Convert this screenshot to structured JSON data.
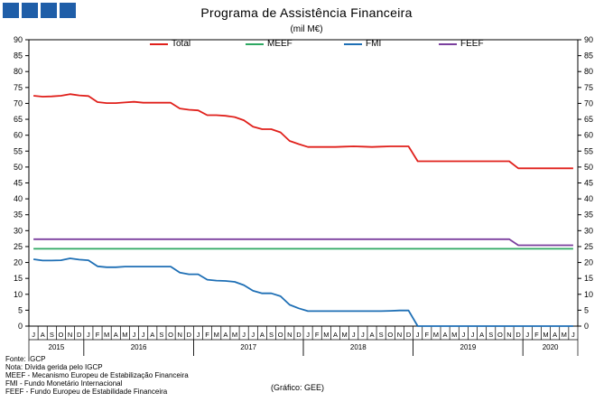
{
  "title": "Programa de Assistência Financeira",
  "subtitle": "(mil M€)",
  "notes": [
    "Fonte: IGCP",
    "Nota: Dívida gerida pelo IGCP",
    "MEEF - Mecanismo Europeu de Estabilização Financeira",
    "FMI - Fundo Monetário Internacional",
    "FEEF - Fundo Europeu de Estabilidade Financeira"
  ],
  "source": "(Gráfico: GEE)",
  "chart_data": {
    "type": "line",
    "title": "Programa de Assistência Financeira",
    "ylabel": "(mil M€)",
    "ylim": [
      0,
      90
    ],
    "yticks": [
      0,
      5,
      10,
      15,
      20,
      25,
      30,
      35,
      40,
      45,
      50,
      55,
      60,
      65,
      70,
      75,
      80,
      85,
      90
    ],
    "grid": false,
    "legend": "top",
    "x": [
      "J",
      "A",
      "S",
      "O",
      "N",
      "D",
      "J",
      "F",
      "M",
      "A",
      "M",
      "J",
      "J",
      "A",
      "S",
      "O",
      "N",
      "D",
      "J",
      "F",
      "M",
      "A",
      "M",
      "J",
      "J",
      "A",
      "S",
      "O",
      "N",
      "D",
      "J",
      "F",
      "M",
      "A",
      "M",
      "J",
      "J",
      "A",
      "S",
      "O",
      "N",
      "D",
      "J",
      "F",
      "M",
      "A",
      "M",
      "J",
      "J",
      "A",
      "S",
      "O",
      "N",
      "D",
      "J",
      "F",
      "M",
      "A",
      "M",
      "J"
    ],
    "years": [
      {
        "label": "2015",
        "start": 0,
        "end": 5
      },
      {
        "label": "2016",
        "start": 6,
        "end": 17
      },
      {
        "label": "2017",
        "start": 18,
        "end": 29
      },
      {
        "label": "2018",
        "start": 30,
        "end": 41
      },
      {
        "label": "2019",
        "start": 42,
        "end": 53
      },
      {
        "label": "2020",
        "start": 54,
        "end": 59
      }
    ],
    "series": [
      {
        "name": "Total",
        "color": "#e0201b",
        "values": [
          72.4,
          72.1,
          72.2,
          72.4,
          72.9,
          72.5,
          72.3,
          70.4,
          70.1,
          70.1,
          70.3,
          70.5,
          70.2,
          70.2,
          70.2,
          70.2,
          68.4,
          68.0,
          67.8,
          66.3,
          66.3,
          66.1,
          65.7,
          64.7,
          62.7,
          61.9,
          61.9,
          60.9,
          58.2,
          57.2,
          56.3,
          56.3,
          56.3,
          56.3,
          56.4,
          56.5,
          56.4,
          56.3,
          56.4,
          56.5,
          56.5,
          56.5,
          51.8,
          51.8,
          51.8,
          51.8,
          51.8,
          51.8,
          51.8,
          51.8,
          51.8,
          51.8,
          51.8,
          49.6,
          49.6,
          49.6,
          49.6,
          49.6,
          49.6,
          49.6
        ]
      },
      {
        "name": "MEEF",
        "color": "#2ea862",
        "values": [
          24.3,
          24.3,
          24.3,
          24.3,
          24.3,
          24.3,
          24.3,
          24.3,
          24.3,
          24.3,
          24.3,
          24.3,
          24.3,
          24.3,
          24.3,
          24.3,
          24.3,
          24.3,
          24.3,
          24.3,
          24.3,
          24.3,
          24.3,
          24.3,
          24.3,
          24.3,
          24.3,
          24.3,
          24.3,
          24.3,
          24.3,
          24.3,
          24.3,
          24.3,
          24.3,
          24.3,
          24.3,
          24.3,
          24.3,
          24.3,
          24.3,
          24.3,
          24.3,
          24.3,
          24.3,
          24.3,
          24.3,
          24.3,
          24.3,
          24.3,
          24.3,
          24.3,
          24.3,
          24.3,
          24.3,
          24.3,
          24.3,
          24.3,
          24.3,
          24.3
        ]
      },
      {
        "name": "FMI",
        "color": "#1e6fb5",
        "values": [
          21.0,
          20.6,
          20.6,
          20.7,
          21.3,
          20.9,
          20.7,
          18.8,
          18.5,
          18.5,
          18.7,
          18.7,
          18.7,
          18.7,
          18.7,
          18.7,
          16.8,
          16.3,
          16.3,
          14.6,
          14.3,
          14.2,
          13.9,
          12.9,
          11.1,
          10.3,
          10.3,
          9.4,
          6.7,
          5.6,
          4.7,
          4.7,
          4.7,
          4.7,
          4.7,
          4.7,
          4.7,
          4.7,
          4.7,
          4.8,
          4.9,
          4.9,
          0.0,
          0.0,
          0.0,
          0.0,
          0.0,
          0.0,
          0.0,
          0.0,
          0.0,
          0.0,
          0.0,
          0.0,
          0.0,
          0.0,
          0.0,
          0.0,
          0.0,
          0.0
        ]
      },
      {
        "name": "FEEF",
        "color": "#7b3f9e",
        "values": [
          27.3,
          27.3,
          27.3,
          27.3,
          27.3,
          27.3,
          27.3,
          27.3,
          27.3,
          27.3,
          27.3,
          27.3,
          27.3,
          27.3,
          27.3,
          27.3,
          27.3,
          27.3,
          27.3,
          27.3,
          27.3,
          27.3,
          27.3,
          27.3,
          27.3,
          27.3,
          27.3,
          27.3,
          27.3,
          27.3,
          27.3,
          27.3,
          27.3,
          27.3,
          27.3,
          27.3,
          27.3,
          27.3,
          27.3,
          27.3,
          27.3,
          27.3,
          27.3,
          27.3,
          27.3,
          27.3,
          27.3,
          27.3,
          27.3,
          27.3,
          27.3,
          27.3,
          27.3,
          25.4,
          25.4,
          25.4,
          25.4,
          25.4,
          25.4,
          25.4
        ]
      }
    ]
  }
}
